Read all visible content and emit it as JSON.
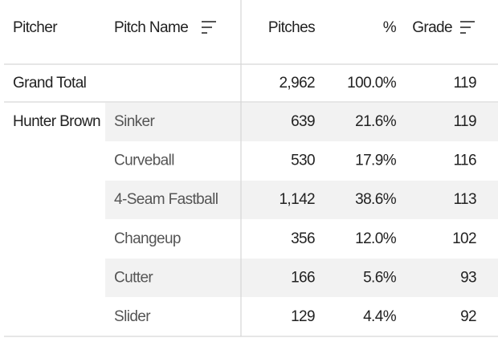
{
  "table": {
    "headers": [
      "Pitcher",
      "Pitch Name",
      "Pitches",
      "%",
      "Grade"
    ],
    "total": [
      "Grand Total",
      "2,962",
      "100.0%",
      "119"
    ],
    "pitcher": "Hunter Brown",
    "rows": [
      [
        "Sinker",
        "639",
        "21.6%",
        "119"
      ],
      [
        "Curveball",
        "530",
        "17.9%",
        "116"
      ],
      [
        "4-Seam Fastball",
        "1,142",
        "38.6%",
        "113"
      ],
      [
        "Changeup",
        "356",
        "12.0%",
        "102"
      ],
      [
        "Cutter",
        "166",
        "5.6%",
        "93"
      ],
      [
        "Slider",
        "129",
        "4.4%",
        "92"
      ]
    ]
  }
}
